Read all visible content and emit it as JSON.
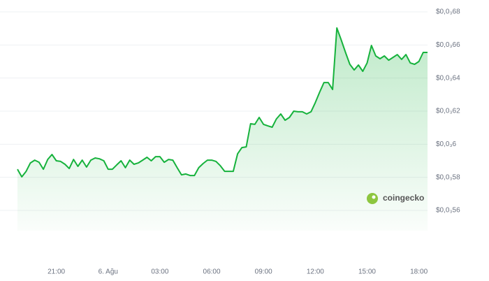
{
  "chart_data": {
    "type": "line",
    "categories": [
      null,
      null,
      null,
      null,
      null,
      null,
      null,
      null,
      null,
      "21:00",
      null,
      null,
      null,
      null,
      null,
      null,
      null,
      null,
      null,
      null,
      null,
      "6. Ağu",
      null,
      null,
      null,
      null,
      null,
      null,
      null,
      null,
      null,
      null,
      null,
      "03:00",
      null,
      null,
      null,
      null,
      null,
      null,
      null,
      null,
      null,
      null,
      null,
      "06:00",
      null,
      null,
      null,
      null,
      null,
      null,
      null,
      null,
      null,
      null,
      null,
      "09:00",
      null,
      null,
      null,
      null,
      null,
      null,
      null,
      null,
      null,
      null,
      null,
      "12:00",
      null,
      null,
      null,
      null,
      null,
      null,
      null,
      null,
      null,
      null,
      null,
      "15:00",
      null,
      null,
      null,
      null,
      null,
      null,
      null,
      null,
      null,
      null,
      null,
      "18:00",
      null,
      null
    ],
    "series": [
      {
        "color": "#16b23c",
        "values": [
          0.0005849,
          0.0005803,
          0.0005836,
          0.0005887,
          0.0005904,
          0.0005891,
          0.0005849,
          0.0005908,
          0.0005938,
          0.00059,
          0.0005896,
          0.0005879,
          0.0005853,
          0.0005908,
          0.0005866,
          0.0005904,
          0.0005862,
          0.0005904,
          0.0005917,
          0.0005912,
          0.00059,
          0.0005849,
          0.0005849,
          0.0005875,
          0.00059,
          0.0005858,
          0.0005904,
          0.0005879,
          0.0005887,
          0.0005904,
          0.0005921,
          0.00059,
          0.0005925,
          0.0005925,
          0.0005891,
          0.0005908,
          0.0005904,
          0.0005858,
          0.0005815,
          0.000582,
          0.0005811,
          0.0005811,
          0.0005858,
          0.0005883,
          0.0005904,
          0.0005904,
          0.0005896,
          0.000587,
          0.0005836,
          0.0005836,
          0.0005836,
          0.0005942,
          0.000598,
          0.0005984,
          0.0006124,
          0.000612,
          0.0006162,
          0.000612,
          0.0006111,
          0.0006103,
          0.0006153,
          0.0006183,
          0.0006145,
          0.0006162,
          0.00062,
          0.0006196,
          0.0006196,
          0.0006183,
          0.0006196,
          0.0006251,
          0.0006314,
          0.0006373,
          0.0006373,
          0.0006331,
          0.0006703,
          0.0006631,
          0.0006555,
          0.0006483,
          0.0006449,
          0.0006479,
          0.0006441,
          0.0006491,
          0.0006597,
          0.0006534,
          0.0006517,
          0.0006534,
          0.0006508,
          0.0006525,
          0.0006542,
          0.0006513,
          0.0006542,
          0.0006491,
          0.0006483,
          0.00065,
          0.0006555,
          0.0006555
        ]
      }
    ],
    "ylim": [
      0.00056,
      0.00068
    ],
    "yticks": [
      {
        "value": 0.00056,
        "label": "$0,0₃56"
      },
      {
        "value": 0.00058,
        "label": "$0,0₃58"
      },
      {
        "value": 0.0006,
        "label": "$0,0₃6"
      },
      {
        "value": 0.00062,
        "label": "$0,0₃62"
      },
      {
        "value": 0.00064,
        "label": "$0,0₃64"
      },
      {
        "value": 0.00066,
        "label": "$0,0₃66"
      },
      {
        "value": 0.00068,
        "label": "$0,0₃68"
      }
    ],
    "grid": true,
    "watermark": "coingecko"
  }
}
